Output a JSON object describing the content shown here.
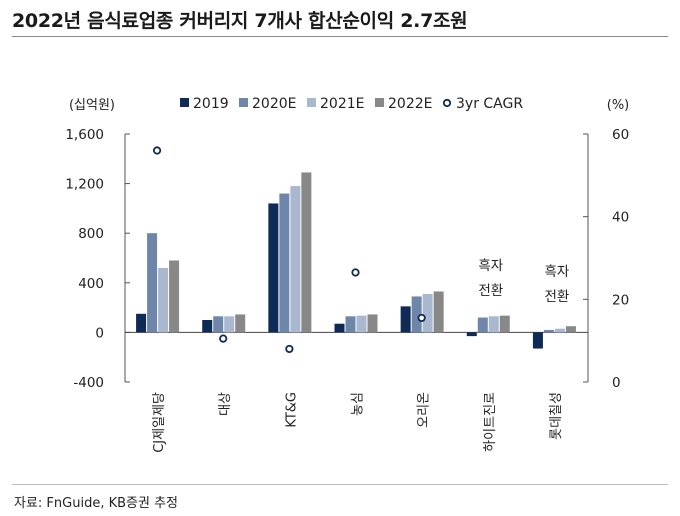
{
  "title": "2022년 음식료업종 커버리지 7개사 합산순이익 2.7조원",
  "source": "자료: FnGuide, KB증권 추정",
  "chart_data": {
    "type": "bar",
    "left_unit": "(십억원)",
    "right_unit": "(%)",
    "categories": [
      "CJ제일제당",
      "대상",
      "KT&G",
      "농심",
      "오리온",
      "하이트진로",
      "롯데칠성"
    ],
    "series": [
      {
        "name": "2019",
        "color": "#0d2b55",
        "values": [
          150,
          100,
          1040,
          70,
          210,
          -30,
          -130
        ]
      },
      {
        "name": "2020E",
        "color": "#6f86ab",
        "values": [
          800,
          130,
          1120,
          130,
          290,
          120,
          20
        ]
      },
      {
        "name": "2021E",
        "color": "#aab8cf",
        "values": [
          520,
          130,
          1180,
          135,
          310,
          130,
          30
        ]
      },
      {
        "name": "2022E",
        "color": "#888888",
        "values": [
          580,
          145,
          1290,
          145,
          330,
          135,
          50
        ]
      }
    ],
    "cagr": {
      "name": "3yr CAGR",
      "values": [
        56,
        10.5,
        null,
        26.5,
        15.5,
        null,
        null
      ],
      "kt_g": 8
    },
    "ylim_left": [
      -400,
      1600
    ],
    "yticks_left": [
      "1,600",
      "1,200",
      "800",
      "400",
      "0",
      "-400"
    ],
    "ylim_right": [
      0,
      60
    ],
    "yticks_right": [
      "60",
      "40",
      "20",
      "0"
    ],
    "annotations": [
      {
        "category": "하이트진로",
        "lines": [
          "흑자",
          "전환"
        ]
      },
      {
        "category": "롯데칠성",
        "lines": [
          "흑자",
          "전환"
        ]
      }
    ]
  }
}
